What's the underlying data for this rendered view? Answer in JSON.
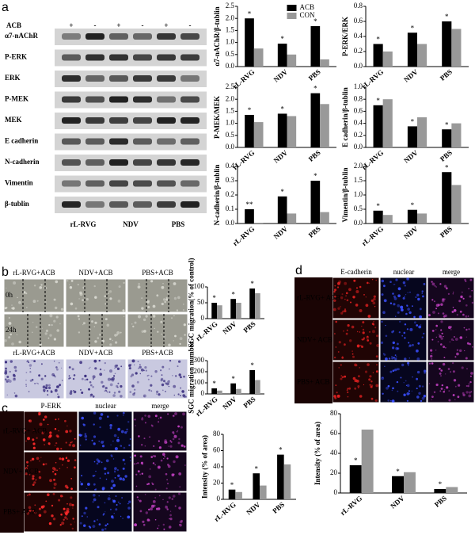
{
  "panel_labels": [
    "a",
    "b",
    "c",
    "d"
  ],
  "blot": {
    "treatment_label": "ACB",
    "signs": [
      "+",
      "-",
      "+",
      "-",
      "+",
      "-"
    ],
    "rows": [
      "α7-nAChR",
      "P-ERK",
      "ERK",
      "P-MEK",
      "MEK",
      "E cadherin",
      "N-cadherin",
      "Vimentin",
      "β-tublin"
    ],
    "groups": [
      "rL-RVG",
      "NDV",
      "PBS"
    ]
  },
  "migration": {
    "columns": [
      "rL-RVG+ACB",
      "NDV+ACB",
      "PBS+ACB"
    ],
    "rows": [
      "0h",
      "24h"
    ],
    "invasion_columns": [
      "rL-RVG+ACB",
      "NDV+ACB",
      "PBS+ACB"
    ]
  },
  "if_c": {
    "columns": [
      "P-ERK",
      "nuclear",
      "merge"
    ],
    "rows": [
      "rL-RVG+ ACB",
      "NDV+ ACB",
      "PBS+ ACB"
    ]
  },
  "if_d": {
    "columns": [
      "E-cadherin",
      "nuclear",
      "merge"
    ],
    "rows": [
      "rL-RVG+ ACB",
      "NDV+ ACB",
      "PBS+ ACB"
    ]
  },
  "chart_data": [
    {
      "type": "bar",
      "ylabel": "α7-nAChR/β-tublin",
      "categories": [
        "rL-RVG",
        "NDV",
        "PBS"
      ],
      "legend": "top-right",
      "ylim": [
        0,
        2.5
      ],
      "yticks": [
        {
          "value": 0,
          "label": "0.0"
        },
        0.5,
        {
          "value": 1,
          "label": "1.0"
        },
        1.5,
        {
          "value": 2,
          "label": "2.0"
        },
        2.5
      ],
      "series": [
        {
          "name": "ACB",
          "color": "#000000",
          "values": [
            2.0,
            0.95,
            1.68
          ],
          "annotations": [
            "*",
            "*",
            "*"
          ]
        },
        {
          "name": "CON",
          "color": "#999999",
          "values": [
            0.75,
            0.5,
            0.3
          ]
        }
      ]
    },
    {
      "type": "bar",
      "ylabel": "P-ERK/ERK",
      "categories": [
        "rL-RVG",
        "NDV",
        "PBS"
      ],
      "ylim": [
        0,
        0.8
      ],
      "yticks": [
        {
          "value": 0,
          "label": "0.0"
        },
        0.2,
        0.4,
        0.6,
        0.8
      ],
      "series": [
        {
          "name": "ACB",
          "color": "#000000",
          "values": [
            0.3,
            0.45,
            0.6
          ],
          "annotations": [
            "*",
            "*",
            "*"
          ]
        },
        {
          "name": "CON",
          "color": "#999999",
          "values": [
            0.2,
            0.3,
            0.5
          ]
        }
      ]
    },
    {
      "type": "bar",
      "ylabel": "P-MEK/MEK",
      "categories": [
        "rL-RVG",
        "NDV",
        "PBS"
      ],
      "ylim": [
        0,
        2.5
      ],
      "yticks": [
        {
          "value": 0,
          "label": "0.0"
        },
        0.5,
        {
          "value": 1,
          "label": "1.0"
        },
        1.5,
        {
          "value": 2,
          "label": "2.0"
        },
        2.5
      ],
      "series": [
        {
          "name": "ACB",
          "color": "#000000",
          "values": [
            1.35,
            1.4,
            2.25
          ],
          "annotations": [
            "*",
            "*",
            "*"
          ]
        },
        {
          "name": "CON",
          "color": "#999999",
          "values": [
            1.05,
            1.3,
            1.8
          ]
        }
      ]
    },
    {
      "type": "bar",
      "ylabel": "E cadherin/β-tublin",
      "categories": [
        "rL-RVG",
        "NDV",
        "PBS"
      ],
      "ylim": [
        0,
        1
      ],
      "yticks": [
        {
          "value": 0,
          "label": "0.0"
        },
        0.2,
        0.4,
        0.6,
        0.8,
        {
          "value": 1,
          "label": "1.0"
        }
      ],
      "series": [
        {
          "name": "ACB",
          "color": "#000000",
          "values": [
            0.7,
            0.35,
            0.3
          ],
          "annotations": [
            "*",
            "*",
            "*"
          ]
        },
        {
          "name": "CON",
          "color": "#999999",
          "values": [
            0.8,
            0.5,
            0.4
          ]
        }
      ]
    },
    {
      "type": "bar",
      "ylabel": "N-cadherin/β-tublin",
      "categories": [
        "rL-RVG",
        "NDV",
        "PBS"
      ],
      "ylim": [
        0,
        0.4
      ],
      "yticks": [
        {
          "value": 0,
          "label": "0.0"
        },
        0.1,
        0.2,
        0.3,
        0.4
      ],
      "series": [
        {
          "name": "ACB",
          "color": "#000000",
          "values": [
            0.1,
            0.19,
            0.3
          ],
          "annotations": [
            "**",
            "*",
            "*"
          ]
        },
        {
          "name": "CON",
          "color": "#999999",
          "values": [
            0.005,
            0.07,
            0.08
          ]
        }
      ]
    },
    {
      "type": "bar",
      "ylabel": "Vimentin/β-tublin",
      "categories": [
        "rL-RVG",
        "NDV",
        "PBS"
      ],
      "ylim": [
        0,
        2
      ],
      "yticks": [
        {
          "value": 0,
          "label": "0.0"
        },
        0.5,
        {
          "value": 1,
          "label": "1.0"
        },
        1.5,
        {
          "value": 2,
          "label": "2.0"
        }
      ],
      "series": [
        {
          "name": "ACB",
          "color": "#000000",
          "values": [
            0.45,
            0.48,
            1.8
          ],
          "annotations": [
            "*",
            "*",
            "*"
          ]
        },
        {
          "name": "CON",
          "color": "#999999",
          "values": [
            0.3,
            0.35,
            1.35
          ]
        }
      ]
    },
    {
      "type": "bar",
      "ylabel": "SGC migration(% of control)",
      "categories": [
        "rL-RVG",
        "NDV",
        "PBS"
      ],
      "ylim": [
        0,
        100
      ],
      "yticks": [
        0,
        50,
        100
      ],
      "series": [
        {
          "name": "ACB",
          "color": "#000000",
          "values": [
            50,
            62,
            95
          ],
          "annotations": [
            "*",
            "*",
            "*"
          ]
        },
        {
          "name": "CON",
          "color": "#999999",
          "values": [
            42,
            50,
            80
          ]
        }
      ]
    },
    {
      "type": "bar",
      "ylabel": "SGC migration number",
      "categories": [
        "rL-RVG",
        "NDV",
        "PBS"
      ],
      "ylim": [
        0,
        300
      ],
      "yticks": [
        0,
        100,
        200,
        300
      ],
      "series": [
        {
          "name": "ACB",
          "color": "#000000",
          "values": [
            50,
            95,
            215
          ],
          "annotations": [
            "*",
            "*",
            "*"
          ]
        },
        {
          "name": "CON",
          "color": "#999999",
          "values": [
            30,
            45,
            125
          ]
        }
      ]
    },
    {
      "type": "bar",
      "ylabel": "Intensity (% of area)",
      "categories": [
        "rL-RVG",
        "NDV",
        "PBS"
      ],
      "ylim": [
        0,
        80
      ],
      "yticks": [
        0,
        20,
        40,
        60,
        80
      ],
      "series": [
        {
          "name": "ACB",
          "color": "#000000",
          "values": [
            12,
            32,
            55
          ],
          "annotations": [
            "*",
            "*",
            "*"
          ]
        },
        {
          "name": "CON",
          "color": "#999999",
          "values": [
            9,
            17,
            43
          ]
        }
      ]
    },
    {
      "type": "bar",
      "ylabel": "Intensity (% of area)",
      "categories": [
        "rL-RVG",
        "NDV",
        "PBS"
      ],
      "ylim": [
        0,
        80
      ],
      "yticks": [
        0,
        20,
        40,
        60,
        80
      ],
      "series": [
        {
          "name": "ACB",
          "color": "#000000",
          "values": [
            28,
            17,
            4
          ],
          "annotations": [
            "*",
            "*",
            "*"
          ]
        },
        {
          "name": "CON",
          "color": "#999999",
          "values": [
            64,
            21,
            6
          ]
        }
      ]
    }
  ]
}
